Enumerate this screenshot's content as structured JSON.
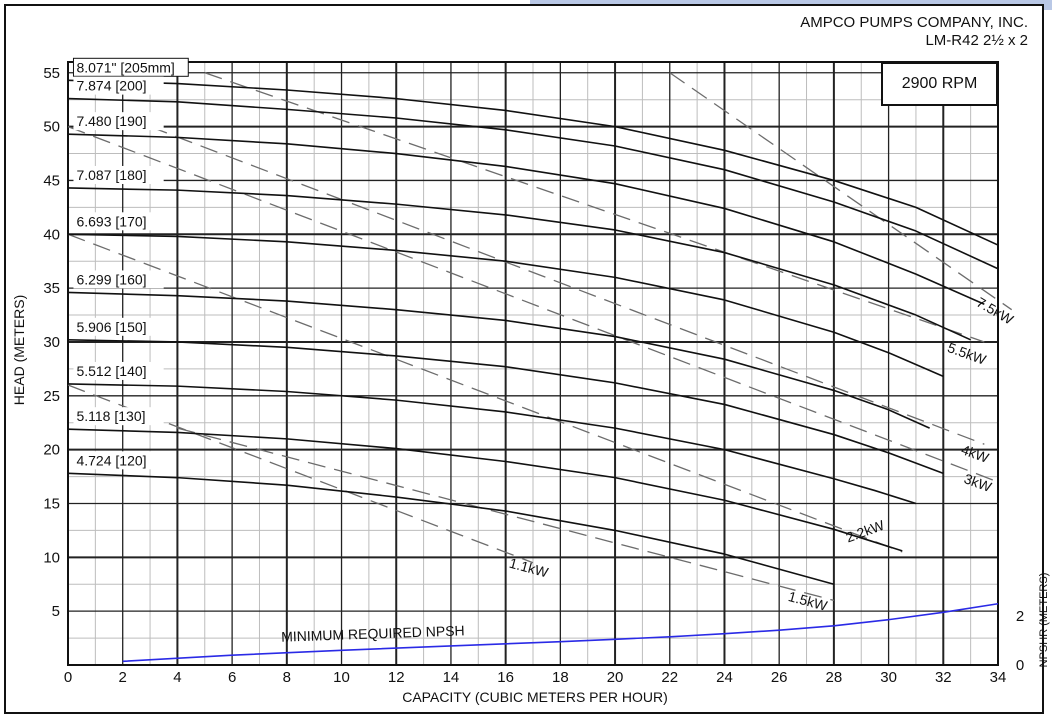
{
  "header": {
    "company": "AMPCO PUMPS COMPANY, INC.",
    "model": "LM-R42 2½ x 2",
    "speed": "2900 RPM"
  },
  "chart_data": {
    "type": "line",
    "xlabel": "CAPACITY (CUBIC METERS PER HOUR)",
    "ylabel": "HEAD (METERS)",
    "y2label": "NPSHR (METERS)",
    "xlim": [
      0,
      34
    ],
    "ylim": [
      0,
      56
    ],
    "xticks": [
      0,
      2,
      4,
      6,
      8,
      10,
      12,
      14,
      16,
      18,
      20,
      22,
      24,
      26,
      28,
      30,
      32,
      34
    ],
    "yticks": [
      5,
      10,
      15,
      20,
      25,
      30,
      35,
      40,
      45,
      50,
      55
    ],
    "y2ticks": [
      0,
      2
    ],
    "grid": true,
    "impeller_curves": [
      {
        "name": "8.071\" [205mm]",
        "x": [
          0,
          4,
          8,
          12,
          16,
          20,
          24,
          28,
          31,
          34
        ],
        "y": [
          54.3,
          54.0,
          53.4,
          52.6,
          51.5,
          50.0,
          47.8,
          45.0,
          42.5,
          39.0
        ]
      },
      {
        "name": "7.874 [200]",
        "x": [
          0,
          4,
          8,
          12,
          16,
          20,
          24,
          28,
          31,
          34
        ],
        "y": [
          52.6,
          52.3,
          51.6,
          50.8,
          49.7,
          48.2,
          46.0,
          43.0,
          40.3,
          36.8
        ]
      },
      {
        "name": "7.480 [190]",
        "x": [
          0,
          4,
          8,
          12,
          16,
          20,
          24,
          28,
          31,
          33.5
        ],
        "y": [
          49.3,
          49.0,
          48.4,
          47.5,
          46.3,
          44.7,
          42.4,
          39.3,
          36.3,
          33.5
        ]
      },
      {
        "name": "7.087 [180]",
        "x": [
          0,
          4,
          8,
          12,
          16,
          20,
          24,
          28,
          31,
          33
        ],
        "y": [
          44.3,
          44.1,
          43.6,
          42.8,
          41.8,
          40.4,
          38.3,
          35.3,
          32.5,
          30.2
        ]
      },
      {
        "name": "6.693 [170]",
        "x": [
          0,
          4,
          8,
          12,
          16,
          20,
          24,
          28,
          30,
          32
        ],
        "y": [
          40.0,
          39.8,
          39.3,
          38.5,
          37.5,
          36.0,
          33.9,
          30.9,
          29.0,
          26.8
        ]
      },
      {
        "name": "6.299 [160]",
        "x": [
          0,
          4,
          8,
          12,
          16,
          20,
          24,
          28,
          30,
          31.5
        ],
        "y": [
          34.6,
          34.3,
          33.8,
          33.0,
          32.0,
          30.5,
          28.4,
          25.5,
          23.7,
          22.0
        ]
      },
      {
        "name": "5.906 [150]",
        "x": [
          0,
          4,
          8,
          12,
          16,
          20,
          24,
          28,
          30,
          32
        ],
        "y": [
          30.2,
          30.0,
          29.5,
          28.7,
          27.7,
          26.2,
          24.2,
          21.4,
          19.7,
          17.8
        ]
      },
      {
        "name": "5.512 [140]",
        "x": [
          0,
          4,
          8,
          12,
          16,
          20,
          24,
          28,
          29.5,
          31
        ],
        "y": [
          26.1,
          25.9,
          25.4,
          24.6,
          23.5,
          22.0,
          20.0,
          17.3,
          16.2,
          15.0
        ]
      },
      {
        "name": "5.118 [130]",
        "x": [
          0,
          4,
          8,
          12,
          16,
          20,
          24,
          28,
          30.5
        ],
        "y": [
          21.9,
          21.6,
          21.0,
          20.1,
          18.9,
          17.4,
          15.3,
          12.6,
          10.6
        ]
      },
      {
        "name": "4.724 [120]",
        "x": [
          0,
          4,
          8,
          12,
          16,
          20,
          24,
          28
        ],
        "y": [
          17.8,
          17.4,
          16.7,
          15.6,
          14.3,
          12.5,
          10.3,
          7.5
        ]
      }
    ],
    "power_lines": [
      {
        "name": "1.1kW",
        "x": [
          0,
          17
        ],
        "y": [
          26,
          9.5
        ]
      },
      {
        "name": "1.5kW",
        "x": [
          4,
          28
        ],
        "y": [
          22,
          6
        ]
      },
      {
        "name": "2.2kW",
        "x": [
          0,
          30.5
        ],
        "y": [
          40,
          10.5
        ]
      },
      {
        "name": "3kW",
        "x": [
          0,
          34
        ],
        "y": [
          50,
          17
        ]
      },
      {
        "name": "4kW",
        "x": [
          3,
          33.5
        ],
        "y": [
          50,
          20.5
        ]
      },
      {
        "name": "5.5kW",
        "x": [
          5,
          33.5
        ],
        "y": [
          55,
          30
        ]
      },
      {
        "name": "7.5kW",
        "x": [
          22,
          34.5
        ],
        "y": [
          55,
          33
        ]
      }
    ],
    "npsh_curve": {
      "name": "MINIMUM REQUIRED NPSH",
      "x": [
        2,
        6,
        10,
        14,
        18,
        20,
        22,
        24,
        26,
        28,
        30,
        32,
        34
      ],
      "y": [
        0.15,
        0.4,
        0.6,
        0.78,
        0.95,
        1.05,
        1.15,
        1.28,
        1.42,
        1.6,
        1.85,
        2.15,
        2.5
      ]
    }
  }
}
